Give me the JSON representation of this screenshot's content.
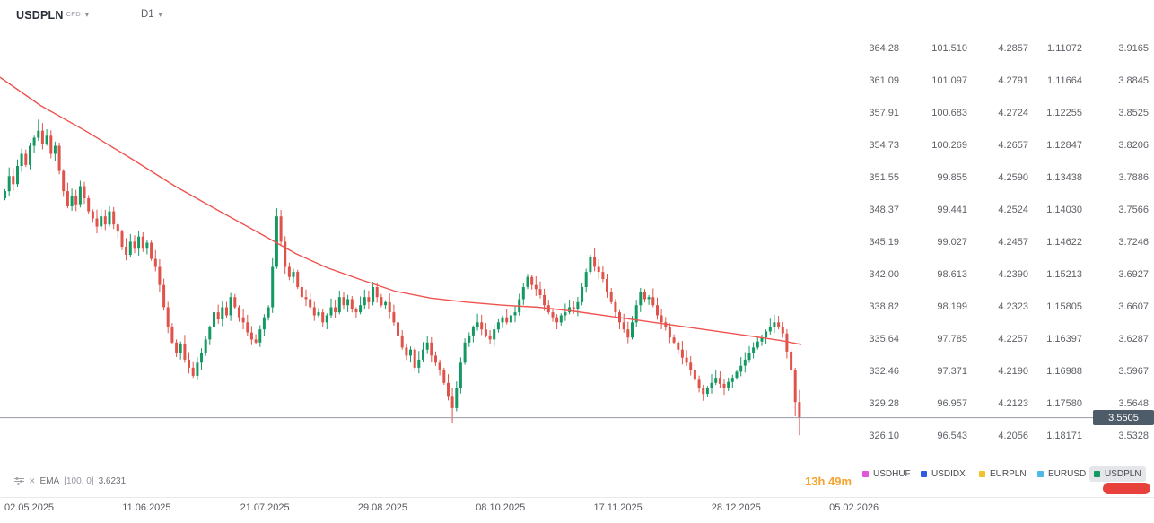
{
  "header": {
    "symbol": "USDPLN",
    "instrument_type": "CFD",
    "timeframe": "D1"
  },
  "indicator": {
    "name": "EMA",
    "params": "[100, 0]",
    "value": "3.6231"
  },
  "countdown": "13h 49m",
  "current_price": {
    "value": "3.5505"
  },
  "x_axis": {
    "dates": [
      "02.05.2025",
      "11.06.2025",
      "21.07.2025",
      "29.08.2025",
      "08.10.2025",
      "17.11.2025",
      "28.12.2025",
      "05.02.2026"
    ]
  },
  "price_scales": {
    "columns": [
      {
        "name": "USDHUF",
        "values": [
          "364.28",
          "361.09",
          "357.91",
          "354.73",
          "351.55",
          "348.37",
          "345.19",
          "342.00",
          "338.82",
          "335.64",
          "332.46",
          "329.28",
          "326.10"
        ]
      },
      {
        "name": "USDIDX",
        "values": [
          "101.510",
          "101.097",
          "100.683",
          "100.269",
          "99.855",
          "99.441",
          "99.027",
          "98.613",
          "98.199",
          "97.785",
          "97.371",
          "96.957",
          "96.543"
        ]
      },
      {
        "name": "EURPLN",
        "values": [
          "4.2857",
          "4.2791",
          "4.2724",
          "4.2657",
          "4.2590",
          "4.2524",
          "4.2457",
          "4.2390",
          "4.2323",
          "4.2257",
          "4.2190",
          "4.2123",
          "4.2056"
        ]
      },
      {
        "name": "EURUSD",
        "values": [
          "1.11072",
          "1.11664",
          "1.12255",
          "1.12847",
          "1.13438",
          "1.14030",
          "1.14622",
          "1.15213",
          "1.15805",
          "1.16397",
          "1.16988",
          "1.17580",
          "1.18171"
        ]
      },
      {
        "name": "USDPLN",
        "values": [
          "3.9165",
          "3.8845",
          "3.8525",
          "3.8206",
          "3.7886",
          "3.7566",
          "3.7246",
          "3.6927",
          "3.6607",
          "3.6287",
          "3.5967",
          "3.5648",
          "3.5328"
        ]
      }
    ]
  },
  "legend": {
    "items": [
      {
        "label": "USDHUF",
        "color": "#e256d8",
        "selected": false
      },
      {
        "label": "USDIDX",
        "color": "#2d5be3",
        "selected": false
      },
      {
        "label": "EURPLN",
        "color": "#f2c12e",
        "selected": false
      },
      {
        "label": "EURUSD",
        "color": "#4fb8ea",
        "selected": false
      },
      {
        "label": "USDPLN",
        "color": "#159963",
        "selected": true
      }
    ],
    "selected_bg": "#e4e6e9"
  },
  "colors": {
    "up": "#159963",
    "down": "#e0534a",
    "ema_line": "#ef5350",
    "current_price_line": "#979ca4",
    "badge_bg": "#4e5b69",
    "countdown_text": "#f5a431",
    "red_button": "#e8403a"
  },
  "chart_data": {
    "type": "candlestick",
    "symbol": "USDPLN",
    "timeframe": "D1",
    "price_range": {
      "top": 3.9165,
      "bottom": 3.5328
    },
    "last_price": 3.5505,
    "first_open": 3.768,
    "closes": [
      3.775,
      3.79,
      3.782,
      3.8,
      3.812,
      3.801,
      3.82,
      3.828,
      3.835,
      3.822,
      3.83,
      3.812,
      3.82,
      3.795,
      3.775,
      3.76,
      3.77,
      3.762,
      3.78,
      3.768,
      3.755,
      3.748,
      3.74,
      3.75,
      3.742,
      3.755,
      3.742,
      3.735,
      3.72,
      3.712,
      3.725,
      3.718,
      3.73,
      3.718,
      3.724,
      3.708,
      3.7,
      3.682,
      3.66,
      3.64,
      3.625,
      3.615,
      3.624,
      3.608,
      3.6,
      3.592,
      3.605,
      3.615,
      3.628,
      3.64,
      3.655,
      3.648,
      3.66,
      3.652,
      3.67,
      3.66,
      3.65,
      3.645,
      3.635,
      3.628,
      3.625,
      3.638,
      3.65,
      3.66,
      3.7,
      3.75,
      3.725,
      3.7,
      3.69,
      3.695,
      3.68,
      3.67,
      3.668,
      3.66,
      3.652,
      3.655,
      3.645,
      3.652,
      3.66,
      3.655,
      3.67,
      3.662,
      3.668,
      3.658,
      3.655,
      3.662,
      3.67,
      3.665,
      3.68,
      3.67,
      3.662,
      3.665,
      3.655,
      3.645,
      3.632,
      3.62,
      3.612,
      3.618,
      3.6,
      3.608,
      3.618,
      3.625,
      3.612,
      3.605,
      3.598,
      3.585,
      3.572,
      3.56,
      3.58,
      3.605,
      3.625,
      3.632,
      3.64,
      3.645,
      3.638,
      3.632,
      3.628,
      3.638,
      3.645,
      3.65,
      3.645,
      3.652,
      3.655,
      3.668,
      3.68,
      3.69,
      3.682,
      3.678,
      3.672,
      3.662,
      3.655,
      3.65,
      3.645,
      3.652,
      3.655,
      3.66,
      3.658,
      3.665,
      3.68,
      3.695,
      3.71,
      3.7,
      3.695,
      3.688,
      3.675,
      3.665,
      3.655,
      3.645,
      3.638,
      3.63,
      3.645,
      3.662,
      3.675,
      3.668,
      3.67,
      3.662,
      3.652,
      3.645,
      3.64,
      3.63,
      3.625,
      3.618,
      3.61,
      3.605,
      3.598,
      3.588,
      3.58,
      3.574,
      3.58,
      3.585,
      3.59,
      3.584,
      3.58,
      3.586,
      3.59,
      3.596,
      3.602,
      3.608,
      3.615,
      3.62,
      3.626,
      3.63,
      3.636,
      3.64,
      3.645,
      3.64,
      3.634,
      3.616,
      3.598,
      3.566,
      3.5505
    ],
    "wick_overrides": {
      "8": {
        "hi": 3.846
      },
      "65": {
        "hi": 3.758
      },
      "107": {
        "lo": 3.545
      },
      "189": {
        "lo": 3.552
      },
      "190": {
        "hi": 3.578,
        "lo": 3.533
      }
    },
    "ema": {
      "label": "EMA [100, 0]",
      "value": 3.6231,
      "points": [
        [
          0,
          3.888
        ],
        [
          45,
          3.86
        ],
        [
          95,
          3.835
        ],
        [
          145,
          3.808
        ],
        [
          195,
          3.78
        ],
        [
          245,
          3.755
        ],
        [
          290,
          3.733
        ],
        [
          330,
          3.713
        ],
        [
          365,
          3.699
        ],
        [
          400,
          3.688
        ],
        [
          440,
          3.676
        ],
        [
          480,
          3.669
        ],
        [
          520,
          3.665
        ],
        [
          560,
          3.662
        ],
        [
          600,
          3.66
        ],
        [
          640,
          3.656
        ],
        [
          680,
          3.651
        ],
        [
          720,
          3.646
        ],
        [
          760,
          3.641
        ],
        [
          800,
          3.636
        ],
        [
          840,
          3.631
        ],
        [
          870,
          3.627
        ],
        [
          893,
          3.6231
        ]
      ]
    }
  }
}
